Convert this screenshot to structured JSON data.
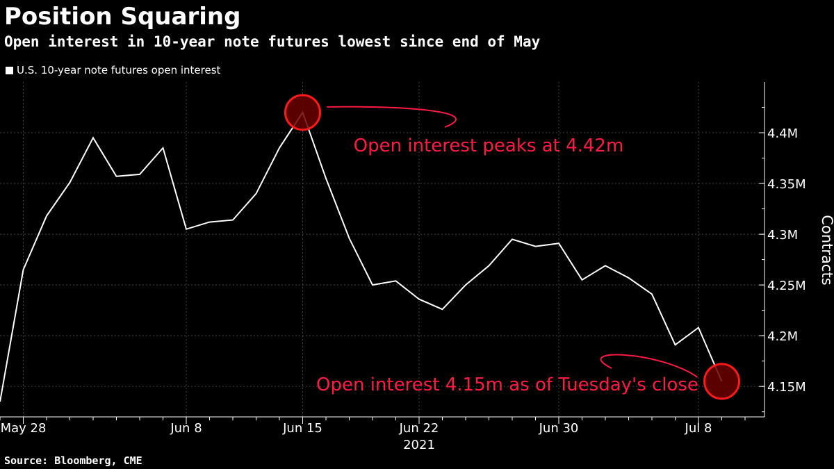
{
  "header": {
    "title": "Position Squaring",
    "subtitle": "Open interest in 10-year note futures lowest since end of May"
  },
  "legend": {
    "label": "U.S. 10-year note futures open interest"
  },
  "source": "Source: Bloomberg, CME",
  "colors": {
    "line": "#ffffff",
    "annotation": "#ff1a44",
    "marker_fill": "#6b0000",
    "grid": "#444444"
  },
  "chart_data": {
    "type": "line",
    "series": [
      {
        "name": "U.S. 10-year note futures open interest",
        "x": [
          "2021-05-27",
          "2021-05-28",
          "2021-05-31",
          "2021-06-01",
          "2021-06-02",
          "2021-06-03",
          "2021-06-04",
          "2021-06-07",
          "2021-06-08",
          "2021-06-09",
          "2021-06-10",
          "2021-06-11",
          "2021-06-14",
          "2021-06-15",
          "2021-06-16",
          "2021-06-17",
          "2021-06-18",
          "2021-06-21",
          "2021-06-22",
          "2021-06-23",
          "2021-06-24",
          "2021-06-25",
          "2021-06-28",
          "2021-06-29",
          "2021-06-30",
          "2021-07-01",
          "2021-07-02",
          "2021-07-05",
          "2021-07-06",
          "2021-07-07",
          "2021-07-08",
          "2021-07-09",
          "2021-07-12",
          "2021-07-13"
        ],
        "values": [
          4.135,
          4.265,
          4.318,
          4.351,
          4.395,
          4.357,
          4.359,
          4.385,
          4.305,
          4.312,
          4.314,
          4.34,
          4.385,
          4.42,
          4.355,
          4.296,
          4.25,
          4.254,
          4.236,
          4.226,
          4.25,
          4.269,
          4.295,
          4.288,
          4.291,
          4.255,
          4.269,
          4.257,
          4.241,
          4.191,
          4.208,
          4.155,
          null,
          null
        ]
      }
    ],
    "x_ticks": [
      {
        "date": "2021-05-28",
        "label": "May 28"
      },
      {
        "date": "2021-06-08",
        "label": "Jun 8"
      },
      {
        "date": "2021-06-15",
        "label": "Jun 15"
      },
      {
        "date": "2021-06-22",
        "label": "Jun 22"
      },
      {
        "date": "2021-06-30",
        "label": "Jun 30"
      },
      {
        "date": "2021-07-08",
        "label": "Jul 8"
      }
    ],
    "x_year_label": "2021",
    "y_ticks": [
      {
        "value": 4.15,
        "label": "4.15M"
      },
      {
        "value": 4.2,
        "label": "4.2M"
      },
      {
        "value": 4.25,
        "label": "4.25M"
      },
      {
        "value": 4.3,
        "label": "4.3M"
      },
      {
        "value": 4.35,
        "label": "4.35M"
      },
      {
        "value": 4.4,
        "label": "4.4M"
      }
    ],
    "ylabel": "Contracts",
    "ylim": [
      4.12,
      4.45
    ],
    "grid": "vertical",
    "annotations": [
      {
        "text": "Open interest peaks at 4.42m",
        "index": 13
      },
      {
        "text": "Open interest 4.15m as of Tuesday's close",
        "index": 31
      }
    ]
  }
}
